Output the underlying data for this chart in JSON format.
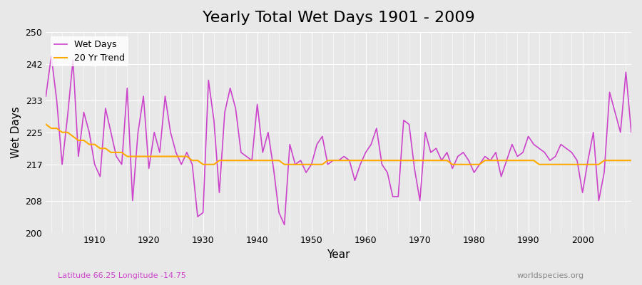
{
  "title": "Yearly Total Wet Days 1901 - 2009",
  "xlabel": "Year",
  "ylabel": "Wet Days",
  "xlim": [
    1901,
    2009
  ],
  "ylim": [
    200,
    250
  ],
  "yticks": [
    200,
    208,
    217,
    225,
    233,
    242,
    250
  ],
  "background_color": "#e8e8e8",
  "plot_bg_color": "#e8e8e8",
  "wet_days_color": "#cc44cc",
  "trend_color": "#ffaa00",
  "footer_left": "Latitude 66.25 Longitude -14.75",
  "footer_right": "worldspecies.org",
  "years": [
    1901,
    1902,
    1903,
    1904,
    1905,
    1906,
    1907,
    1908,
    1909,
    1910,
    1911,
    1912,
    1913,
    1914,
    1915,
    1916,
    1917,
    1918,
    1919,
    1920,
    1921,
    1922,
    1923,
    1924,
    1925,
    1926,
    1927,
    1928,
    1929,
    1930,
    1931,
    1932,
    1933,
    1934,
    1935,
    1936,
    1937,
    1938,
    1939,
    1940,
    1941,
    1942,
    1943,
    1944,
    1945,
    1946,
    1947,
    1948,
    1949,
    1950,
    1951,
    1952,
    1953,
    1954,
    1955,
    1956,
    1957,
    1958,
    1959,
    1960,
    1961,
    1962,
    1963,
    1964,
    1965,
    1966,
    1967,
    1968,
    1969,
    1970,
    1971,
    1972,
    1973,
    1974,
    1975,
    1976,
    1977,
    1978,
    1979,
    1980,
    1981,
    1982,
    1983,
    1984,
    1985,
    1986,
    1987,
    1988,
    1989,
    1990,
    1991,
    1992,
    1993,
    1994,
    1995,
    1996,
    1997,
    1998,
    1999,
    2000,
    2001,
    2002,
    2003,
    2004,
    2005,
    2006,
    2007,
    2008,
    2009
  ],
  "wet_days": [
    234,
    244,
    233,
    217,
    229,
    243,
    219,
    230,
    225,
    217,
    214,
    231,
    225,
    219,
    217,
    236,
    208,
    225,
    234,
    216,
    225,
    220,
    234,
    225,
    220,
    217,
    220,
    217,
    204,
    205,
    238,
    228,
    210,
    230,
    236,
    231,
    220,
    219,
    218,
    232,
    220,
    225,
    216,
    205,
    202,
    222,
    217,
    218,
    215,
    217,
    222,
    224,
    217,
    218,
    218,
    219,
    218,
    213,
    217,
    220,
    222,
    226,
    217,
    215,
    209,
    209,
    228,
    227,
    216,
    208,
    225,
    220,
    221,
    218,
    220,
    216,
    219,
    220,
    218,
    215,
    217,
    219,
    218,
    220,
    214,
    218,
    222,
    219,
    220,
    224,
    222,
    221,
    220,
    218,
    219,
    222,
    221,
    220,
    218,
    210,
    218,
    225,
    208,
    215,
    235,
    230,
    225,
    240,
    225
  ],
  "trend": [
    227,
    226,
    226,
    225,
    225,
    224,
    223,
    223,
    222,
    222,
    221,
    221,
    220,
    220,
    220,
    219,
    219,
    219,
    219,
    219,
    219,
    219,
    219,
    219,
    219,
    219,
    219,
    218,
    218,
    217,
    217,
    217,
    218,
    218,
    218,
    218,
    218,
    218,
    218,
    218,
    218,
    218,
    218,
    218,
    217,
    217,
    217,
    217,
    217,
    217,
    217,
    217,
    218,
    218,
    218,
    218,
    218,
    218,
    218,
    218,
    218,
    218,
    218,
    218,
    218,
    218,
    218,
    218,
    218,
    218,
    218,
    218,
    218,
    218,
    218,
    217,
    217,
    217,
    217,
    217,
    217,
    218,
    218,
    218,
    218,
    218,
    218,
    218,
    218,
    218,
    218,
    217,
    217,
    217,
    217,
    217,
    217,
    217,
    217,
    217,
    217,
    217,
    217,
    218,
    218,
    218,
    218,
    218,
    218
  ]
}
